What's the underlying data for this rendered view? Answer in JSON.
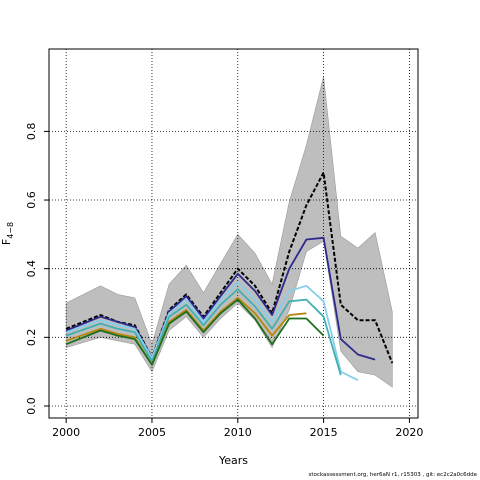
{
  "chart_data": {
    "type": "line",
    "xlabel": "Years",
    "ylabel": "F",
    "ylabel_sub": "4−8",
    "xlim": [
      1999,
      2020.5
    ],
    "ylim": [
      -0.035,
      1.04
    ],
    "xticks": [
      2000,
      2005,
      2010,
      2015,
      2020
    ],
    "yticks": [
      0.0,
      0.2,
      0.4,
      0.6,
      0.8
    ],
    "grid": true,
    "band": {
      "color": "#bebebe",
      "x": [
        2000,
        2002,
        2003,
        2004,
        2005,
        2006,
        2007,
        2008,
        2009,
        2010,
        2011,
        2012,
        2013,
        2014,
        2015,
        2016,
        2017,
        2018,
        2019
      ],
      "upper": [
        0.3,
        0.35,
        0.325,
        0.315,
        0.18,
        0.355,
        0.41,
        0.33,
        0.415,
        0.5,
        0.445,
        0.355,
        0.595,
        0.76,
        0.96,
        0.495,
        0.46,
        0.505,
        0.275
      ],
      "lower": [
        0.17,
        0.2,
        0.19,
        0.18,
        0.1,
        0.22,
        0.26,
        0.2,
        0.255,
        0.3,
        0.25,
        0.17,
        0.28,
        0.45,
        0.48,
        0.16,
        0.1,
        0.09,
        0.055
      ]
    },
    "series": [
      {
        "color": "#000000",
        "dashed": true,
        "x": [
          2000,
          2002,
          2003,
          2004,
          2005,
          2006,
          2007,
          2008,
          2009,
          2010,
          2011,
          2012,
          2013,
          2014,
          2015,
          2016,
          2017,
          2018,
          2019
        ],
        "values": [
          0.225,
          0.265,
          0.245,
          0.235,
          0.14,
          0.28,
          0.325,
          0.26,
          0.33,
          0.4,
          0.35,
          0.27,
          0.45,
          0.585,
          0.68,
          0.295,
          0.25,
          0.25,
          0.125
        ]
      },
      {
        "color": "#2c2a8c",
        "x": [
          2000,
          2002,
          2003,
          2004,
          2005,
          2006,
          2007,
          2008,
          2009,
          2010,
          2011,
          2012,
          2013,
          2014,
          2015,
          2016,
          2017,
          2018
        ],
        "values": [
          0.22,
          0.26,
          0.245,
          0.23,
          0.14,
          0.275,
          0.32,
          0.255,
          0.32,
          0.385,
          0.335,
          0.265,
          0.4,
          0.485,
          0.49,
          0.195,
          0.15,
          0.135
        ]
      },
      {
        "color": "#87ceeb",
        "x": [
          2000,
          2002,
          2003,
          2004,
          2005,
          2006,
          2007,
          2008,
          2009,
          2010,
          2011,
          2012,
          2013,
          2014,
          2015,
          2016,
          2017
        ],
        "values": [
          0.215,
          0.25,
          0.235,
          0.225,
          0.14,
          0.27,
          0.31,
          0.245,
          0.31,
          0.36,
          0.31,
          0.245,
          0.335,
          0.35,
          0.305,
          0.1,
          0.075
        ]
      },
      {
        "color": "#40b0b0",
        "x": [
          2000,
          2002,
          2003,
          2004,
          2005,
          2006,
          2007,
          2008,
          2009,
          2010,
          2011,
          2012,
          2013,
          2014,
          2015,
          2016
        ],
        "values": [
          0.205,
          0.24,
          0.225,
          0.215,
          0.13,
          0.26,
          0.295,
          0.235,
          0.295,
          0.34,
          0.29,
          0.225,
          0.305,
          0.31,
          0.26,
          0.09
        ]
      },
      {
        "color": "#b8860b",
        "x": [
          2000,
          2002,
          2003,
          2004,
          2005,
          2006,
          2007,
          2008,
          2009,
          2010,
          2011,
          2012,
          2013,
          2014
        ],
        "values": [
          0.19,
          0.225,
          0.21,
          0.2,
          0.12,
          0.245,
          0.28,
          0.22,
          0.275,
          0.315,
          0.27,
          0.205,
          0.265,
          0.27
        ]
      },
      {
        "color": "#1f6f1f",
        "x": [
          2000,
          2002,
          2003,
          2004,
          2005,
          2006,
          2007,
          2008,
          2009,
          2010,
          2011,
          2012,
          2013,
          2014,
          2015
        ],
        "values": [
          0.18,
          0.22,
          0.205,
          0.195,
          0.12,
          0.24,
          0.275,
          0.215,
          0.27,
          0.31,
          0.255,
          0.18,
          0.255,
          0.255,
          0.205
        ]
      }
    ]
  },
  "footer": "stockassessment.org, her6aN r1, r15303 , git: ec2c2a0c6dde"
}
